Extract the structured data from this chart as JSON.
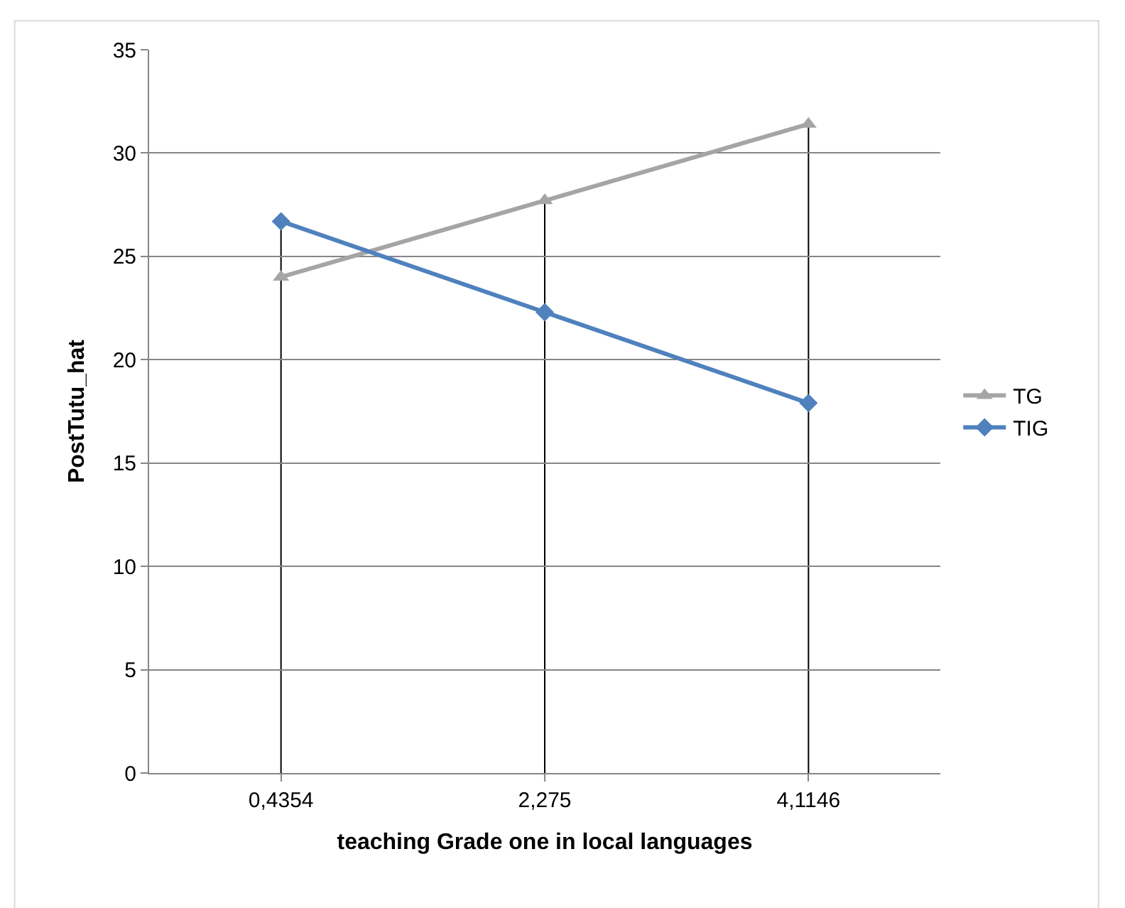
{
  "chart_data": {
    "type": "line",
    "xlabel": "teaching Grade one in local languages",
    "ylabel": "PostTutu_hat",
    "categories": [
      "0,4354",
      "2,275",
      "4,1146"
    ],
    "series": [
      {
        "name": "TG",
        "color": "#a5a5a5",
        "marker": "triangle",
        "values": [
          24.0,
          27.7,
          31.4
        ]
      },
      {
        "name": "TIG",
        "color": "#4f81bd",
        "marker": "diamond",
        "values": [
          26.7,
          22.3,
          17.9
        ]
      }
    ],
    "ylim": [
      0,
      35
    ],
    "yticks": [
      0,
      5,
      10,
      15,
      20,
      25,
      30,
      35
    ],
    "grid": "y",
    "legend": "right",
    "line_style": "solid",
    "ref_lines": [
      {
        "axis": "x",
        "value": "0,4354",
        "color": "#000000"
      },
      {
        "axis": "x",
        "value": "2,275",
        "color": "#000000"
      },
      {
        "axis": "x",
        "value": "4,1146",
        "color": "#000000"
      }
    ]
  }
}
